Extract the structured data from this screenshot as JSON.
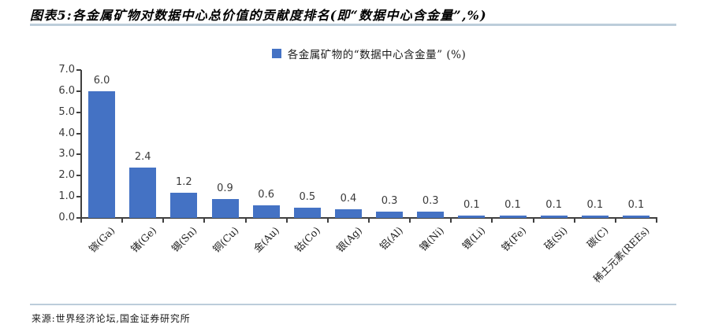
{
  "header": {
    "title": "图表5:各金属矿物对数据中心总价值的贡献度排名(即“数据中心含金量”,%)"
  },
  "chart_data": {
    "type": "bar",
    "title": "",
    "legend": "各金属矿物的“数据中心含金量” (%)",
    "legend_position": "top-center",
    "categories": [
      "镓(Ga)",
      "锗(Ge)",
      "锡(Sn)",
      "铜(Cu)",
      "金(Au)",
      "钴(Co)",
      "银(Ag)",
      "铝(Al)",
      "镍(Ni)",
      "锂(Li)",
      "铁(Fe)",
      "硅(Si)",
      "碳(C)",
      "稀土元素(REEs)"
    ],
    "values": [
      6.0,
      2.4,
      1.2,
      0.9,
      0.6,
      0.5,
      0.4,
      0.3,
      0.3,
      0.1,
      0.1,
      0.1,
      0.1,
      0.1
    ],
    "value_labels": [
      "6.0",
      "2.4",
      "1.2",
      "0.9",
      "0.6",
      "0.5",
      "0.4",
      "0.3",
      "0.3",
      "0.1",
      "0.1",
      "0.1",
      "0.1",
      "0.1"
    ],
    "ylim": [
      0,
      7
    ],
    "ytick_labels": [
      "0.0",
      "1.0",
      "2.0",
      "3.0",
      "4.0",
      "5.0",
      "6.0",
      "7.0"
    ],
    "grid": false,
    "bar_color": "#4472C4",
    "axis_color": "#3f3f3f",
    "divider_color": "#bccdda"
  },
  "footer": {
    "source": "来源:世界经济论坛,国金证券研究所"
  }
}
